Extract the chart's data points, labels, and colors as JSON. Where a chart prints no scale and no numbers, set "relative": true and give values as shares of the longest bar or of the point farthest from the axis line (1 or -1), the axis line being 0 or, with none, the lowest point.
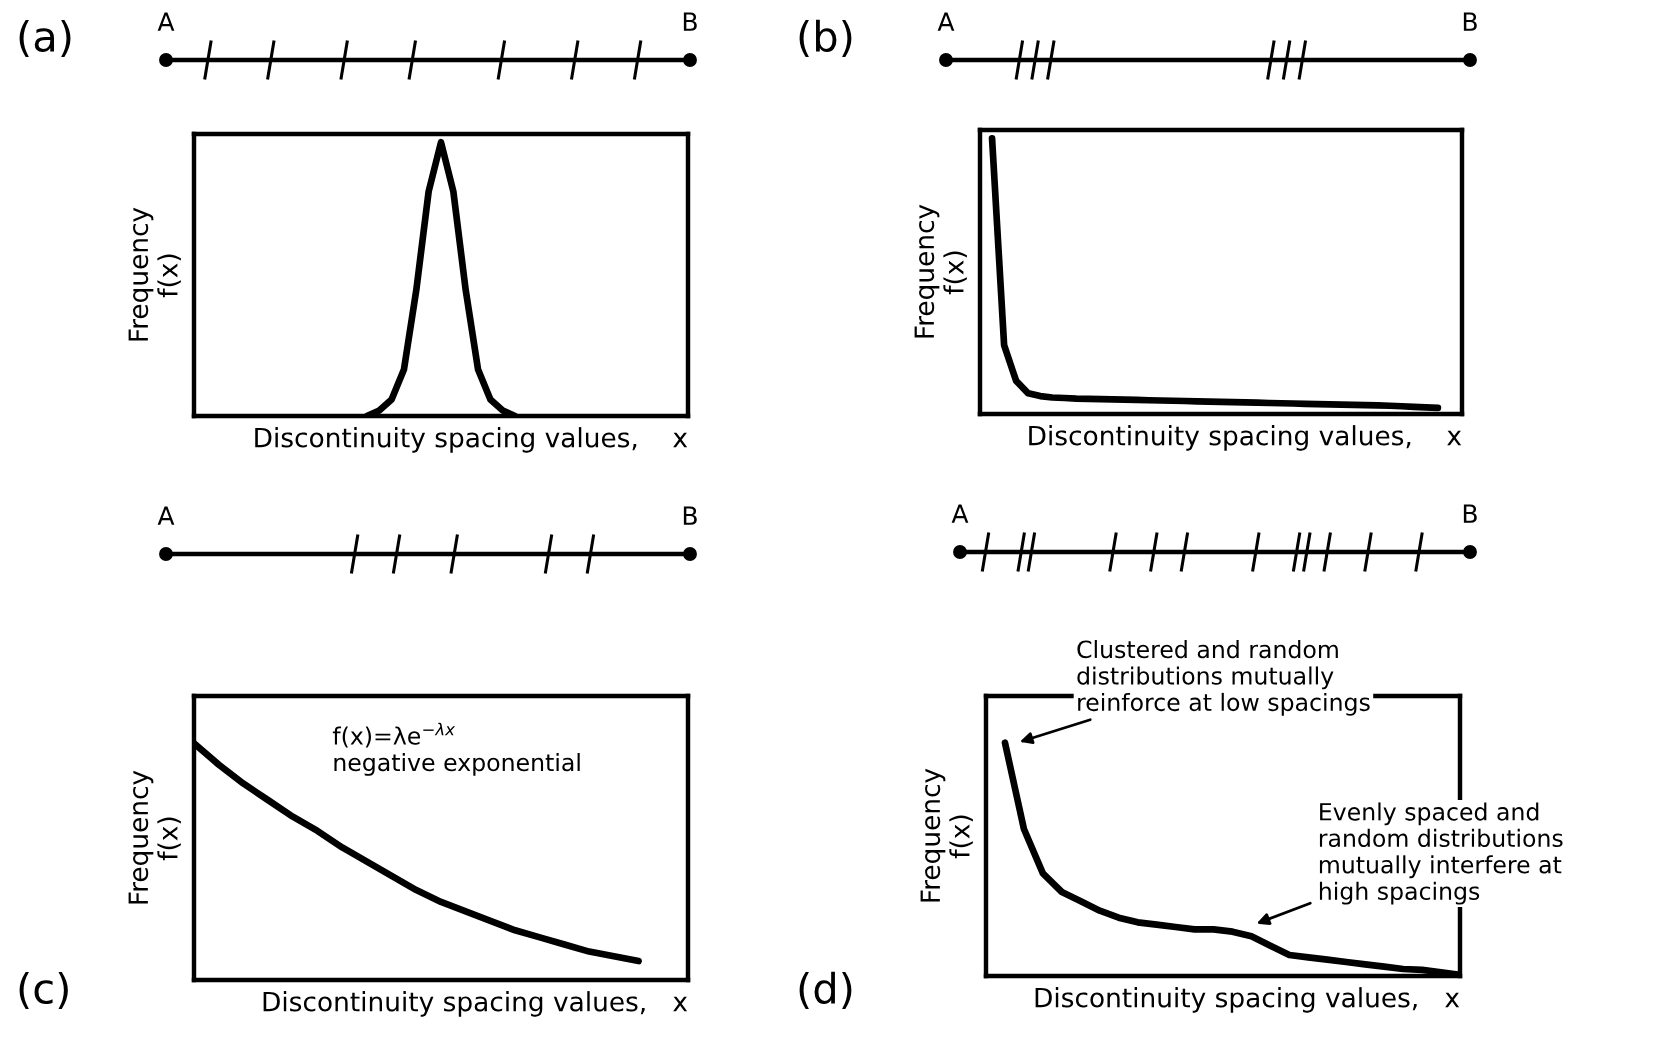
{
  "chart_data": [
    {
      "type": "line",
      "title": "(a)",
      "xlabel": "Discontinuity spacing values,    x",
      "ylabel": "Frequency\nf(x)",
      "relative": true,
      "tick_labels": false,
      "color": "#000000",
      "categories": [
        null,
        null,
        null,
        null,
        null,
        null,
        null,
        null,
        null,
        null,
        null,
        null,
        null,
        null,
        null,
        null,
        null,
        null,
        null,
        null,
        null,
        null,
        null,
        null,
        null,
        null,
        null,
        null,
        null,
        null,
        null,
        null,
        null,
        null,
        null,
        null,
        null,
        null,
        null,
        null,
        null
      ],
      "values": [
        null,
        null,
        null,
        null,
        null,
        null,
        null,
        null,
        null,
        null,
        null,
        null,
        null,
        null,
        0,
        0.02,
        0.06,
        0.17,
        0.46,
        0.82,
        1,
        0.82,
        0.46,
        0.17,
        0.06,
        0.02,
        0,
        null,
        null,
        null,
        null,
        null,
        null,
        null,
        null,
        null,
        null,
        null,
        null,
        null,
        null
      ],
      "annotations": [
        "A",
        "B"
      ]
    },
    {
      "type": "line",
      "title": "(b)",
      "xlabel": "Discontinuity spacing values,    x",
      "ylabel": "Frequency\nf(x)",
      "relative": true,
      "tick_labels": false,
      "color": "#000000",
      "categories": [
        null,
        null,
        null,
        null,
        null,
        null,
        null,
        null,
        null,
        null,
        null,
        null,
        null,
        null,
        null,
        null,
        null,
        null,
        null,
        null,
        null,
        null,
        null,
        null,
        null,
        null,
        null,
        null,
        null,
        null,
        null,
        null,
        null,
        null,
        null,
        null,
        null,
        null,
        null,
        null,
        null
      ],
      "values": [
        null,
        1,
        0.25,
        0.12,
        0.075,
        0.065,
        0.06,
        0.058,
        0.056,
        0.055,
        0.054,
        0.053,
        0.052,
        0.051,
        0.05,
        0.049,
        0.048,
        0.047,
        0.046,
        0.045,
        0.044,
        0.043,
        0.042,
        0.041,
        0.04,
        0.039,
        0.038,
        0.037,
        0.036,
        0.035,
        0.034,
        0.033,
        0.032,
        0.031,
        0.03,
        0.028,
        0.026,
        0.024,
        0.022,
        null,
        null
      ],
      "annotations": [
        "A",
        "B"
      ]
    },
    {
      "type": "line",
      "title": "(c)",
      "xlabel": "Discontinuity spacing values,   x",
      "ylabel": "Frequency\nf(x)",
      "relative": true,
      "tick_labels": false,
      "color": "#000000",
      "categories": [
        null,
        null,
        null,
        null,
        null,
        null,
        null,
        null,
        null,
        null,
        null,
        null,
        null,
        null,
        null,
        null,
        null,
        null,
        null,
        null,
        null
      ],
      "values": [
        1,
        0.91,
        0.83,
        0.76,
        0.69,
        0.63,
        0.56,
        0.5,
        0.44,
        0.38,
        0.33,
        0.29,
        0.25,
        0.21,
        0.18,
        0.15,
        0.12,
        0.1,
        0.08,
        null,
        null
      ],
      "annotations": [
        "A",
        "B",
        "f(x)=λe$^{−λx}$\nnegative exponential"
      ]
    },
    {
      "type": "line",
      "title": "(d)",
      "xlabel": "Discontinuity spacing values,   x",
      "ylabel": "Frequency\nf(x)",
      "relative": true,
      "tick_labels": false,
      "color": "#000000",
      "categories": [
        null,
        null,
        null,
        null,
        null,
        null,
        null,
        null,
        null,
        null,
        null,
        null,
        null,
        null,
        null,
        null,
        null,
        null,
        null,
        null,
        null,
        null,
        null,
        null,
        null,
        null
      ],
      "values": [
        null,
        1,
        0.63,
        0.44,
        0.36,
        0.32,
        0.28,
        0.25,
        0.23,
        0.22,
        0.21,
        0.2,
        0.2,
        0.19,
        0.17,
        0.13,
        0.09,
        0.08,
        0.07,
        0.06,
        0.05,
        0.04,
        0.03,
        0.026,
        0.016,
        0.005
      ],
      "annotations": [
        "A",
        "B",
        "Clustered and random\ndistributions mutually\nreinforce at low spacings",
        "Evenly spaced and\nrandom distributions\nmutually interfere at\nhigh spacings"
      ]
    }
  ]
}
